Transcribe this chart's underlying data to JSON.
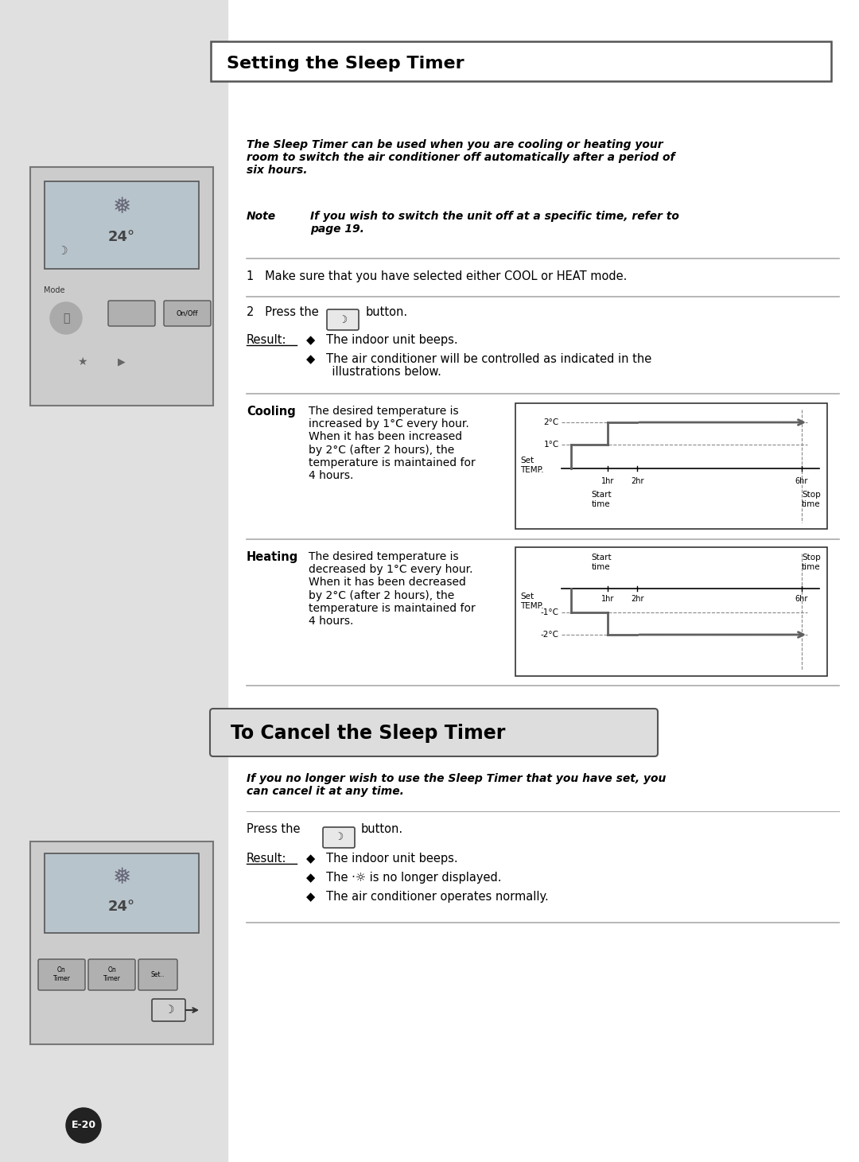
{
  "page_bg": "#ffffff",
  "sidebar_bg": "#e0e0e0",
  "title_box_text": "Setting the Sleep Timer",
  "section2_title": "To Cancel the Sleep Timer",
  "intro_text": "The Sleep Timer can be used when you are cooling or heating your\nroom to switch the air conditioner off automatically after a period of\nsix hours.",
  "note_label": "Note",
  "note_text": "If you wish to switch the unit off at a specific time, refer to\npage 19.",
  "step1_text": "1   Make sure that you have selected either COOL or HEAT mode.",
  "step2_text": "2   Press the",
  "step2b_text": "button.",
  "result_label": "Result:",
  "result_bullet1": "◆   The indoor unit beeps.",
  "result_bullet2": "◆   The air conditioner will be controlled as indicated in the\n       illustrations below.",
  "cooling_label": "Cooling",
  "cooling_text": "The desired temperature is\nincreased by 1°C every hour.\nWhen it has been increased\nby 2°C (after 2 hours), the\ntemperature is maintained for\n4 hours.",
  "heating_label": "Heating",
  "heating_text": "The desired temperature is\ndecreased by 1°C every hour.\nWhen it has been decreased\nby 2°C (after 2 hours), the\ntemperature is maintained for\n4 hours.",
  "cancel_intro": "If you no longer wish to use the Sleep Timer that you have set, you\ncan cancel it at any time.",
  "cancel_press": "Press the",
  "cancel_button_text": "button.",
  "cancel_result_label": "Result:",
  "cancel_result1": "◆   The indoor unit beeps.",
  "cancel_result2": "◆   The ·☼ is no longer displayed.",
  "cancel_result3": "◆   The air conditioner operates normally.",
  "page_num": "E-20",
  "line_color": "#aaaaaa",
  "step_color": "#606060"
}
